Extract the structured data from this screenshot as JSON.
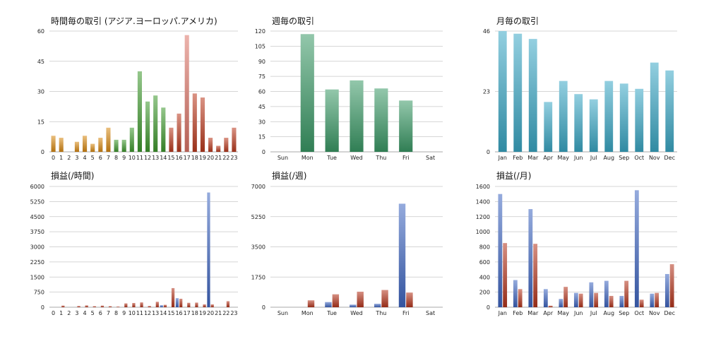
{
  "colors": {
    "orange": "#d98a14",
    "green": "#3f9a2e",
    "red": "#bb3a1f",
    "salmon": "#dd7568",
    "teal_green": "#3a9a67",
    "cyan": "#3aa8c6",
    "blue": "#3f67c2",
    "dark_red": "#b5361d"
  },
  "chart_data": [
    {
      "type": "bar",
      "title": "時間毎の取引 (アジア.ヨーロッパ.アメリカ)",
      "categories": [
        "0",
        "1",
        "2",
        "3",
        "4",
        "5",
        "6",
        "7",
        "8",
        "9",
        "10",
        "11",
        "12",
        "13",
        "14",
        "15",
        "16",
        "17",
        "18",
        "19",
        "20",
        "21",
        "22",
        "23"
      ],
      "values": [
        8,
        7,
        0,
        5,
        8,
        4,
        7,
        12,
        6,
        6,
        12,
        40,
        25,
        28,
        22,
        12,
        19,
        58,
        29,
        27,
        7,
        3,
        7,
        12
      ],
      "bar_colors": [
        "orange",
        "orange",
        "orange",
        "orange",
        "orange",
        "orange",
        "orange",
        "orange",
        "green",
        "green",
        "green",
        "green",
        "green",
        "green",
        "green",
        "red",
        "red",
        "salmon",
        "red",
        "red",
        "red",
        "red",
        "red",
        "red"
      ],
      "ylim": [
        0,
        60
      ],
      "yticks": [
        "0",
        "15",
        "30",
        "45",
        "60"
      ],
      "grid": true
    },
    {
      "type": "bar",
      "title": "週毎の取引",
      "categories": [
        "Sun",
        "Mon",
        "Tue",
        "Wed",
        "Thu",
        "Fri",
        "Sat"
      ],
      "values": [
        0,
        117,
        62,
        71,
        63,
        51,
        0
      ],
      "bar_colors": [
        "teal_green",
        "teal_green",
        "teal_green",
        "teal_green",
        "teal_green",
        "teal_green",
        "teal_green"
      ],
      "ylim": [
        0,
        120
      ],
      "yticks": [
        "0",
        "15",
        "30",
        "45",
        "60",
        "75",
        "90",
        "105",
        "120"
      ],
      "grid": true
    },
    {
      "type": "bar",
      "title": "月毎の取引",
      "categories": [
        "Jan",
        "Feb",
        "Mar",
        "Apr",
        "May",
        "Jun",
        "Jul",
        "Aug",
        "Sep",
        "Oct",
        "Nov",
        "Dec"
      ],
      "values": [
        46,
        45,
        43,
        19,
        27,
        22,
        20,
        27,
        26,
        24,
        34,
        31
      ],
      "bar_colors": [
        "cyan",
        "cyan",
        "cyan",
        "cyan",
        "cyan",
        "cyan",
        "cyan",
        "cyan",
        "cyan",
        "cyan",
        "cyan",
        "cyan"
      ],
      "ylim": [
        0,
        46
      ],
      "yticks": [
        "0",
        "23",
        "46"
      ],
      "grid": true
    },
    {
      "type": "bar",
      "title": "損益(/時間)",
      "categories": [
        "0",
        "1",
        "2",
        "3",
        "4",
        "5",
        "6",
        "7",
        "8",
        "9",
        "10",
        "11",
        "12",
        "13",
        "14",
        "15",
        "16",
        "17",
        "18",
        "19",
        "20",
        "21",
        "22",
        "23"
      ],
      "series": [
        {
          "values": [
            0,
            0,
            0,
            0,
            0,
            0,
            0,
            0,
            0,
            0,
            0,
            0,
            0,
            0,
            100,
            0,
            450,
            0,
            0,
            0,
            5700,
            0,
            0,
            0
          ],
          "color": "blue"
        },
        {
          "values": [
            0,
            80,
            0,
            60,
            90,
            50,
            80,
            50,
            30,
            190,
            210,
            240,
            60,
            270,
            120,
            950,
            420,
            220,
            230,
            140,
            140,
            0,
            300,
            0
          ],
          "color": "dark_red"
        }
      ],
      "ylim": [
        0,
        6000
      ],
      "yticks": [
        "0",
        "750",
        "1500",
        "2250",
        "3000",
        "3750",
        "4500",
        "5250",
        "6000"
      ],
      "grid": true
    },
    {
      "type": "bar",
      "title": "損益(/週)",
      "categories": [
        "Sun",
        "Mon",
        "Tue",
        "Wed",
        "Thu",
        "Fri",
        "Sat"
      ],
      "series": [
        {
          "values": [
            0,
            0,
            300,
            150,
            200,
            6000,
            0
          ],
          "color": "blue"
        },
        {
          "values": [
            0,
            400,
            750,
            900,
            1000,
            850,
            0
          ],
          "color": "dark_red"
        }
      ],
      "ylim": [
        0,
        7000
      ],
      "yticks": [
        "0",
        "1750",
        "3500",
        "5250",
        "7000"
      ],
      "grid": true
    },
    {
      "type": "bar",
      "title": "損益(/月)",
      "categories": [
        "Jan",
        "Feb",
        "Mar",
        "Apr",
        "May",
        "Jun",
        "Jul",
        "Aug",
        "Sep",
        "Oct",
        "Nov",
        "Dec"
      ],
      "series": [
        {
          "values": [
            1500,
            360,
            1300,
            240,
            110,
            190,
            330,
            350,
            150,
            1550,
            180,
            440
          ],
          "color": "blue"
        },
        {
          "values": [
            850,
            240,
            840,
            20,
            270,
            180,
            190,
            150,
            350,
            100,
            190,
            570
          ],
          "color": "dark_red"
        }
      ],
      "ylim": [
        0,
        1600
      ],
      "yticks": [
        "0",
        "200",
        "400",
        "600",
        "800",
        "1000",
        "1200",
        "1400",
        "1600"
      ],
      "grid": true
    }
  ]
}
